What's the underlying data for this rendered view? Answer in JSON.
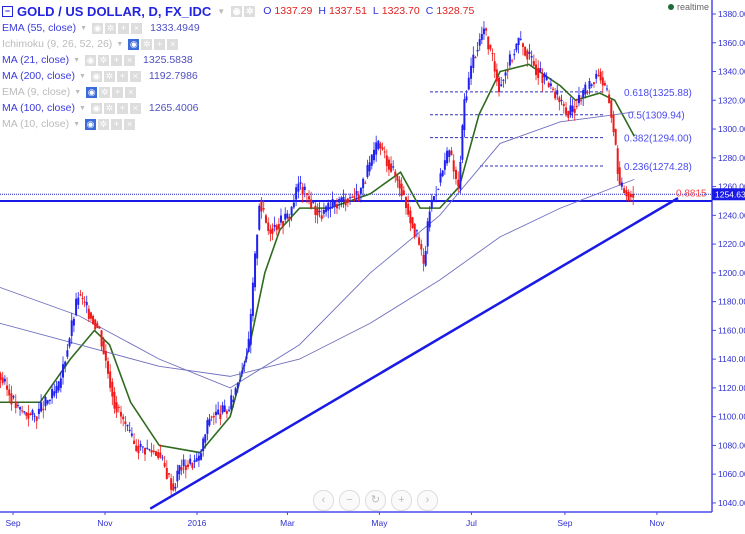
{
  "header": {
    "symbol": "GOLD / US DOLLAR, D, FX_IDC",
    "open_label": "O",
    "open": "1337.29",
    "high_label": "H",
    "high": "1337.51",
    "low_label": "L",
    "low": "1323.70",
    "close_label": "C",
    "close": "1328.75",
    "realtime": "realtime"
  },
  "indicators": [
    {
      "label": "EMA (55, close)",
      "value": "1333.4949",
      "visible": true
    },
    {
      "label": "Ichimoku (9, 26, 52, 26)",
      "value": "",
      "visible": false
    },
    {
      "label": "MA (21, close)",
      "value": "1325.5838",
      "visible": true
    },
    {
      "label": "MA (200, close)",
      "value": "1192.7986",
      "visible": true
    },
    {
      "label": "EMA (9, close)",
      "value": "",
      "visible": false
    },
    {
      "label": "MA (100, close)",
      "value": "1265.4006",
      "visible": true
    },
    {
      "label": "MA (10, close)",
      "value": "",
      "visible": false
    }
  ],
  "nav": {
    "left": "‹",
    "zoom_out": "−",
    "reset": "↻",
    "zoom_in": "+",
    "right": "›"
  },
  "colors": {
    "up": "#2020f0",
    "down": "#f01818",
    "ma21": "#2e6b1e",
    "ma_long": "#7070c0",
    "axis": "#4a4af0",
    "trendline": "#1a1ae6"
  },
  "chart_data": {
    "type": "candlestick",
    "ylim": [
      1030,
      1390
    ],
    "yticks": [
      "1380.00",
      "1360.00",
      "1340.00",
      "1320.00",
      "1300.00",
      "1280.00",
      "1260.00",
      "1240.00",
      "1220.00",
      "1200.00",
      "1180.00",
      "1160.00",
      "1140.00",
      "1120.00",
      "1100.00",
      "1080.00",
      "1060.00",
      "1040.00"
    ],
    "xticks": [
      {
        "label": "Sep",
        "date": "2015-09-01"
      },
      {
        "label": "Nov",
        "date": "2015-11-01"
      },
      {
        "label": "2016",
        "date": "2016-01-01"
      },
      {
        "label": "Mar",
        "date": "2016-03-01"
      },
      {
        "label": "May",
        "date": "2016-05-01"
      },
      {
        "label": "Jul",
        "date": "2016-07-01"
      },
      {
        "label": "Sep",
        "date": "2016-09-01"
      },
      {
        "label": "Nov",
        "date": "2016-11-01"
      }
    ],
    "price": [
      [
        "2015-08-23",
        1130
      ],
      [
        "2015-09-05",
        1105
      ],
      [
        "2015-09-16",
        1100
      ],
      [
        "2015-10-02",
        1120
      ],
      [
        "2015-10-15",
        1185
      ],
      [
        "2015-10-29",
        1160
      ],
      [
        "2015-11-08",
        1110
      ],
      [
        "2015-11-21",
        1080
      ],
      [
        "2015-12-07",
        1075
      ],
      [
        "2015-12-17",
        1050
      ],
      [
        "2015-12-21",
        1065
      ],
      [
        "2016-01-03",
        1070
      ],
      [
        "2016-01-10",
        1100
      ],
      [
        "2016-01-23",
        1105
      ],
      [
        "2016-02-05",
        1150
      ],
      [
        "2016-02-12",
        1250
      ],
      [
        "2016-02-18",
        1230
      ],
      [
        "2016-03-03",
        1240
      ],
      [
        "2016-03-09",
        1262
      ],
      [
        "2016-03-23",
        1240
      ],
      [
        "2016-04-05",
        1250
      ],
      [
        "2016-04-18",
        1255
      ],
      [
        "2016-05-01",
        1290
      ],
      [
        "2016-05-15",
        1262
      ],
      [
        "2016-05-28",
        1220
      ],
      [
        "2016-05-31",
        1205
      ],
      [
        "2016-06-04",
        1245
      ],
      [
        "2016-06-17",
        1285
      ],
      [
        "2016-06-23",
        1258
      ],
      [
        "2016-06-27",
        1320
      ],
      [
        "2016-07-03",
        1350
      ],
      [
        "2016-07-10",
        1370
      ],
      [
        "2016-07-20",
        1330
      ],
      [
        "2016-08-02",
        1362
      ],
      [
        "2016-08-15",
        1340
      ],
      [
        "2016-08-29",
        1320
      ],
      [
        "2016-09-04",
        1310
      ],
      [
        "2016-09-18",
        1330
      ],
      [
        "2016-09-24",
        1340
      ],
      [
        "2016-10-01",
        1320
      ],
      [
        "2016-10-04",
        1300
      ],
      [
        "2016-10-08",
        1260
      ],
      [
        "2016-10-14",
        1255
      ],
      [
        "2016-10-17",
        1254.63
      ]
    ],
    "series": [
      {
        "name": "MA (21, close)",
        "color": "#2e6b1e",
        "values": [
          [
            "2015-08-23",
            1110
          ],
          [
            "2015-09-19",
            1110
          ],
          [
            "2015-10-09",
            1140
          ],
          [
            "2015-10-25",
            1160
          ],
          [
            "2015-11-04",
            1150
          ],
          [
            "2015-11-18",
            1110
          ],
          [
            "2015-12-07",
            1080
          ],
          [
            "2016-01-03",
            1075
          ],
          [
            "2016-01-23",
            1100
          ],
          [
            "2016-02-05",
            1150
          ],
          [
            "2016-02-15",
            1200
          ],
          [
            "2016-02-25",
            1230
          ],
          [
            "2016-03-09",
            1245
          ],
          [
            "2016-03-29",
            1245
          ],
          [
            "2016-04-25",
            1255
          ],
          [
            "2016-05-15",
            1270
          ],
          [
            "2016-05-28",
            1245
          ],
          [
            "2016-06-10",
            1245
          ],
          [
            "2016-06-23",
            1260
          ],
          [
            "2016-07-06",
            1310
          ],
          [
            "2016-07-20",
            1340
          ],
          [
            "2016-08-08",
            1345
          ],
          [
            "2016-08-29",
            1330
          ],
          [
            "2016-09-08",
            1320
          ],
          [
            "2016-09-24",
            1325
          ],
          [
            "2016-10-04",
            1320
          ],
          [
            "2016-10-17",
            1295
          ]
        ]
      },
      {
        "name": "MA (200, close)",
        "color": "#7070c0",
        "values": [
          [
            "2015-08-23",
            1165
          ],
          [
            "2015-10-15",
            1150
          ],
          [
            "2015-12-07",
            1135
          ],
          [
            "2016-01-23",
            1128
          ],
          [
            "2016-03-09",
            1140
          ],
          [
            "2016-04-25",
            1165
          ],
          [
            "2016-06-10",
            1195
          ],
          [
            "2016-07-20",
            1225
          ],
          [
            "2016-08-29",
            1245
          ],
          [
            "2016-10-17",
            1265
          ]
        ]
      },
      {
        "name": "MA (100, close)",
        "color": "#7070c0",
        "values": [
          [
            "2015-08-23",
            1190
          ],
          [
            "2015-10-15",
            1170
          ],
          [
            "2015-12-07",
            1140
          ],
          [
            "2016-01-23",
            1120
          ],
          [
            "2016-03-09",
            1150
          ],
          [
            "2016-04-25",
            1200
          ],
          [
            "2016-06-10",
            1240
          ],
          [
            "2016-07-20",
            1290
          ],
          [
            "2016-08-29",
            1305
          ],
          [
            "2016-10-04",
            1310
          ],
          [
            "2016-10-17",
            1312
          ]
        ]
      }
    ],
    "fibonacci": [
      {
        "label": "0.618(1325.88)",
        "price": 1325.88
      },
      {
        "label": "0.5(1309.94)",
        "price": 1309.94
      },
      {
        "label": "0.382(1294.00)",
        "price": 1294.0
      },
      {
        "label": "0.236(1274.28)",
        "price": 1274.28
      },
      {
        "label": "0.8815",
        "price": 1254.63
      }
    ],
    "trendline": [
      [
        "2015-12-01",
        1036
      ],
      [
        "2016-11-15",
        1252
      ]
    ],
    "support": 1250,
    "last_price": "1254.63"
  }
}
